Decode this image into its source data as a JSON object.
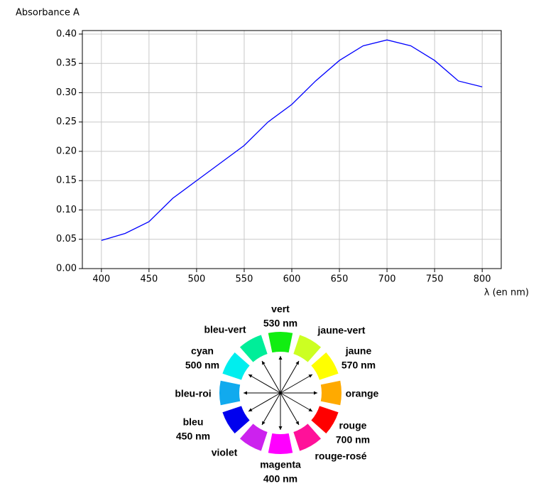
{
  "chart_data": {
    "type": "line",
    "ylabel": "Absorbance A",
    "xlabel": "λ (en nm)",
    "x": [
      400,
      425,
      450,
      475,
      500,
      525,
      550,
      575,
      600,
      625,
      650,
      675,
      700,
      725,
      750,
      775,
      800
    ],
    "series": [
      {
        "name": "Absorbance",
        "color": "#0000ff",
        "values": [
          0.048,
          0.06,
          0.08,
          0.12,
          0.15,
          0.18,
          0.21,
          0.25,
          0.28,
          0.32,
          0.355,
          0.38,
          0.39,
          0.38,
          0.355,
          0.32,
          0.31
        ]
      }
    ],
    "xlim": [
      380,
      820
    ],
    "xticks": [
      400,
      450,
      500,
      550,
      600,
      650,
      700,
      750,
      800
    ],
    "ylim": [
      0,
      0.406
    ],
    "yticks": [
      {
        "value": 0,
        "label": "0.00"
      },
      0.05,
      {
        "value": 0.1,
        "label": "0.10"
      },
      0.15,
      {
        "value": 0.2,
        "label": "0.20"
      },
      0.25,
      {
        "value": 0.3,
        "label": "0.30"
      },
      0.35,
      {
        "value": 0.4,
        "label": "0.40"
      }
    ],
    "grid": true
  },
  "color_wheel": {
    "segments": [
      {
        "lines": [
          "vert",
          "530 nm"
        ],
        "color": "#11ee11"
      },
      {
        "lines": [
          "jaune-vert"
        ],
        "color": "#ccff22"
      },
      {
        "lines": [
          "jaune",
          "570 nm"
        ],
        "color": "#ffff00"
      },
      {
        "lines": [
          "orange"
        ],
        "color": "#ffaa00"
      },
      {
        "lines": [
          "rouge",
          "700 nm"
        ],
        "color": "#ff0000"
      },
      {
        "lines": [
          "rouge-rosé"
        ],
        "color": "#ff1199"
      },
      {
        "lines": [
          "magenta",
          "400 nm"
        ],
        "color": "#ff00ff"
      },
      {
        "lines": [
          "violet"
        ],
        "color": "#cc22ee"
      },
      {
        "lines": [
          "bleu",
          "450 nm"
        ],
        "color": "#0000ee"
      },
      {
        "lines": [
          "bleu-roi"
        ],
        "color": "#11aaee"
      },
      {
        "lines": [
          "cyan",
          "500 nm"
        ],
        "color": "#00eeee"
      },
      {
        "lines": [
          "bleu-vert"
        ],
        "color": "#00ee99"
      }
    ]
  }
}
